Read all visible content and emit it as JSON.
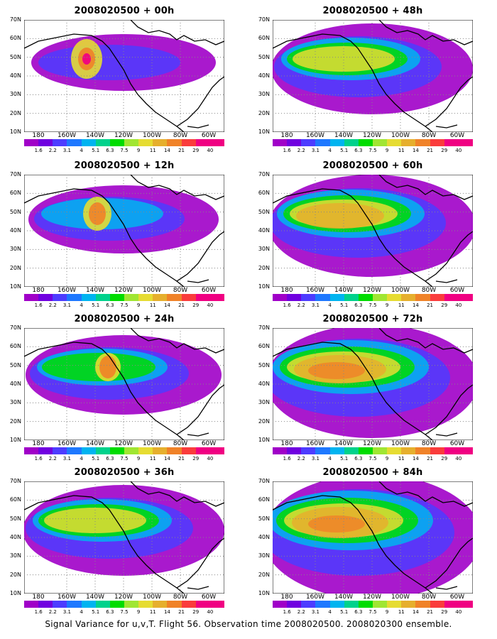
{
  "panels": [
    {
      "title": "2008020500 + 00h",
      "level": 0
    },
    {
      "title": "2008020500 + 48h",
      "level": 3
    },
    {
      "title": "2008020500 + 12h",
      "level": 1
    },
    {
      "title": "2008020500 + 60h",
      "level": 4
    },
    {
      "title": "2008020500 + 24h",
      "level": 2
    },
    {
      "title": "2008020500 + 72h",
      "level": 5
    },
    {
      "title": "2008020500 + 36h",
      "level": 3
    },
    {
      "title": "2008020500 + 84h",
      "level": 6
    }
  ],
  "lat_labels": [
    "70N",
    "60N",
    "50N",
    "40N",
    "30N",
    "20N",
    "10N"
  ],
  "lon_labels": [
    "180",
    "160W",
    "140W",
    "120W",
    "100W",
    "80W",
    "60W"
  ],
  "colorbar": {
    "labels": [
      "1.6",
      "2.2",
      "3.1",
      "4",
      "5.1",
      "6.3",
      "7.5",
      "9",
      "11",
      "14",
      "21",
      "29",
      "40"
    ],
    "colors": [
      "#a000c8",
      "#7000e0",
      "#4d3cff",
      "#1e78ff",
      "#00b4f0",
      "#00d28c",
      "#00dc00",
      "#a0e632",
      "#e6dc32",
      "#e6af2d",
      "#f08228",
      "#fa3c3c",
      "#f00082"
    ]
  },
  "footer": "Signal Variance for u,v,T. Flight 56. Observation time 2008020500. 2008020300 ensemble."
}
